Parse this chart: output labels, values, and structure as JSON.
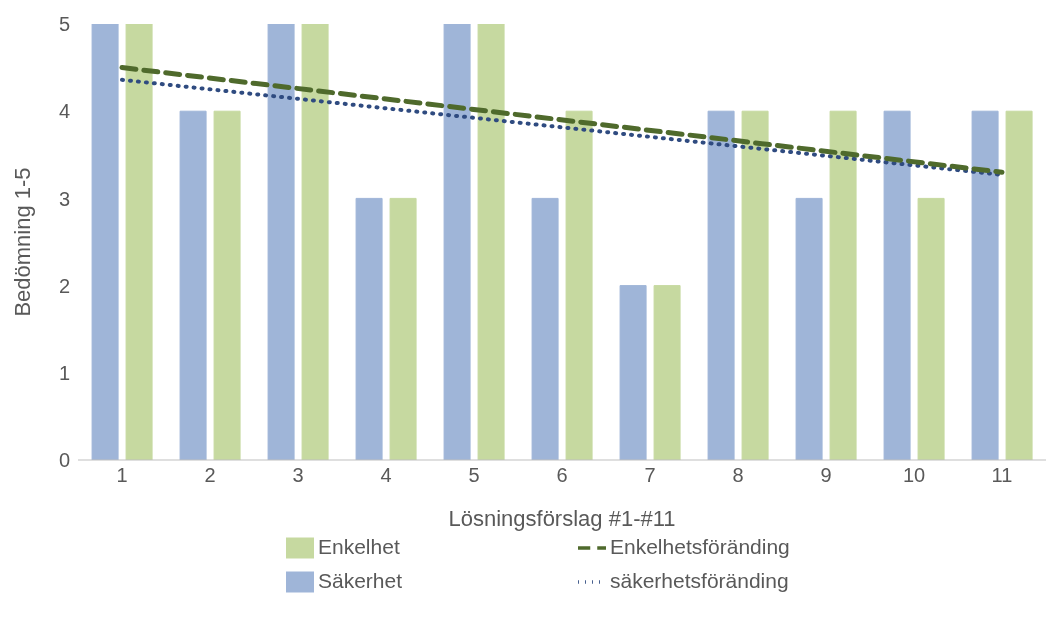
{
  "chart_data": {
    "type": "bar",
    "xlabel": "Lösningsförslag #1-#11",
    "ylabel": "Bedömning 1-5",
    "categories": [
      "1",
      "2",
      "3",
      "4",
      "5",
      "6",
      "7",
      "8",
      "9",
      "10",
      "11"
    ],
    "series": [
      {
        "name": "Säkerhet",
        "color": "#9fb5d8",
        "values": [
          5,
          4,
          5,
          3,
          5,
          3,
          2,
          4,
          3,
          4,
          4
        ]
      },
      {
        "name": "Enkelhet",
        "color": "#c6d9a0",
        "values": [
          5,
          4,
          5,
          3,
          5,
          4,
          2,
          4,
          4,
          3,
          4
        ]
      },
      {
        "name": "säkerhetsföränding",
        "type": "line",
        "line_style": "dotted",
        "color": "#2f4b80",
        "x": [
          "1",
          "11"
        ],
        "values": [
          4.36,
          3.27
        ]
      },
      {
        "name": "Enkelhetsföränding",
        "type": "line",
        "line_style": "dashed",
        "color": "#4f6a2c",
        "x": [
          "1",
          "11"
        ],
        "values": [
          4.5,
          3.3
        ]
      }
    ],
    "ylim": [
      0,
      5
    ],
    "yticks": [
      0,
      1,
      2,
      3,
      4,
      5
    ],
    "legend": "bottom"
  }
}
